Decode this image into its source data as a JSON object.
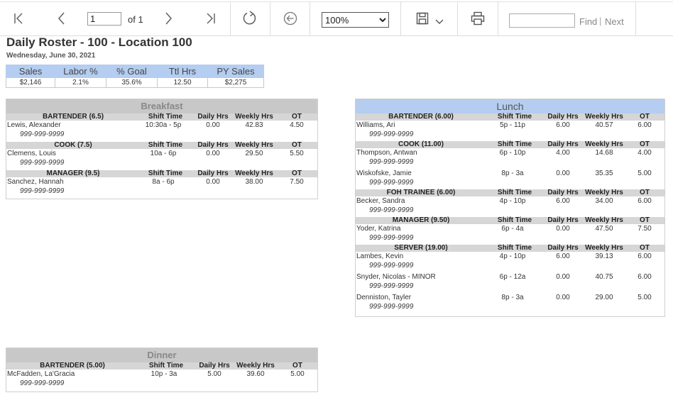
{
  "toolbar": {
    "page_value": "1",
    "page_of": "of 1",
    "zoom_options": [
      "100%"
    ],
    "zoom_selected": "100%",
    "find_label": "Find",
    "find_separator": "|",
    "next_label": "Next",
    "icons": [
      "first-page-icon",
      "prev-page-icon",
      "next-page-icon",
      "last-page-icon",
      "refresh-icon",
      "back-icon",
      "save-icon",
      "chevron-down-icon",
      "print-icon"
    ]
  },
  "report": {
    "title": "Daily Roster - 100 - Location 100",
    "date": "Wednesday, June 30, 2021",
    "summary": {
      "headers": [
        "Sales",
        "Labor %",
        "% Goal",
        "Ttl Hrs",
        "PY Sales"
      ],
      "values": [
        "$2,146",
        "2.1%",
        "35.6%",
        "12.50",
        "$2,275"
      ]
    }
  },
  "columns": {
    "shift": "Shift Time",
    "daily": "Daily Hrs",
    "weekly": "Weekly Hrs",
    "ot": "OT"
  },
  "breakfast": {
    "title": "Breakfast",
    "groups": [
      {
        "label": "BARTENDER (6.5)",
        "employees": [
          {
            "name": "Lewis, Alexander",
            "phone": "999-999-9999",
            "shift": "10:30a - 5p",
            "daily": "0.00",
            "weekly": "42.83",
            "ot": "4.50"
          }
        ]
      },
      {
        "label": "COOK (7.5)",
        "employees": [
          {
            "name": "Clemens, Louis",
            "phone": "999-999-9999",
            "shift": "10a - 6p",
            "daily": "0.00",
            "weekly": "29.50",
            "ot": "5.50"
          }
        ]
      },
      {
        "label": "MANAGER (9.5)",
        "employees": [
          {
            "name": "Sanchez, Hannah",
            "phone": "999-999-9999",
            "shift": "8a - 6p",
            "daily": "0.00",
            "weekly": "38.00",
            "ot": "7.50"
          }
        ]
      }
    ]
  },
  "lunch": {
    "title": "Lunch",
    "groups": [
      {
        "label": "BARTENDER (6.00)",
        "employees": [
          {
            "name": "Williams, Ari",
            "phone": "999-999-9999",
            "shift": "5p - 11p",
            "daily": "6.00",
            "weekly": "40.57",
            "ot": "6.00"
          }
        ]
      },
      {
        "label": "COOK (11.00)",
        "employees": [
          {
            "name": "Thompson, Antwan",
            "phone": "999-999-9999",
            "shift": "6p - 10p",
            "daily": "4.00",
            "weekly": "14.68",
            "ot": "4.00"
          },
          {
            "name": "Wiskofske, Jamie",
            "phone": "999-999-9999",
            "shift": "8p - 3a",
            "daily": "0.00",
            "weekly": "35.35",
            "ot": "5.00"
          }
        ]
      },
      {
        "label": "FOH TRAINEE (6.00)",
        "employees": [
          {
            "name": "Becker, Sandra",
            "phone": "999-999-9999",
            "shift": "4p - 10p",
            "daily": "6.00",
            "weekly": "34.00",
            "ot": "6.00"
          }
        ]
      },
      {
        "label": "MANAGER (9.50)",
        "employees": [
          {
            "name": "Yoder, Katrina",
            "phone": "999-999-9999",
            "shift": "6p - 4a",
            "daily": "0.00",
            "weekly": "47.50",
            "ot": "7.50"
          }
        ]
      },
      {
        "label": "SERVER (19.00)",
        "employees": [
          {
            "name": "Lambes, Kevin",
            "phone": "999-999-9999",
            "shift": "4p - 10p",
            "daily": "6.00",
            "weekly": "39.13",
            "ot": "6.00"
          },
          {
            "name": "Snyder, Nicolas - MINOR",
            "phone": "999-999-9999",
            "shift": "6p - 12a",
            "daily": "0.00",
            "weekly": "40.75",
            "ot": "6.00"
          },
          {
            "name": "Denniston, Tayler",
            "phone": "999-999-9999",
            "shift": "8p - 3a",
            "daily": "0.00",
            "weekly": "29.00",
            "ot": "5.00"
          }
        ]
      }
    ]
  },
  "dinner": {
    "title": "Dinner",
    "groups": [
      {
        "label": "BARTENDER (5.00)",
        "employees": [
          {
            "name": "McFadden, La'Gracia",
            "phone": "999-999-9999",
            "shift": "10p - 3a",
            "daily": "5.00",
            "weekly": "39.60",
            "ot": "5.00"
          }
        ]
      }
    ]
  }
}
